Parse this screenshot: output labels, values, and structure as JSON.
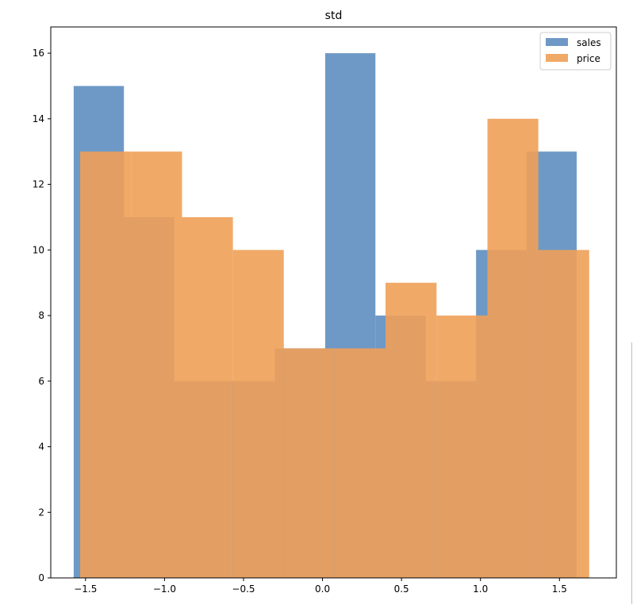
{
  "chart_data": {
    "type": "histogram",
    "title": "std",
    "xlabel": "",
    "ylabel": "",
    "xlim": [
      -1.72,
      1.86
    ],
    "ylim": [
      0,
      16.8
    ],
    "xticks": [
      -1.5,
      -1.0,
      -0.5,
      0.0,
      0.5,
      1.0,
      1.5
    ],
    "xtick_labels": [
      "−1.5",
      "−1.0",
      "−0.5",
      "0.0",
      "0.5",
      "1.0",
      "1.5"
    ],
    "yticks": [
      0,
      2,
      4,
      6,
      8,
      10,
      12,
      14,
      16
    ],
    "ytick_labels": [
      "0",
      "2",
      "4",
      "6",
      "8",
      "10",
      "12",
      "14",
      "16"
    ],
    "grid": false,
    "legend_position": "top-right",
    "series": [
      {
        "name": "sales",
        "color": "#4a80b8",
        "opacity": 0.8,
        "bin_edges": [
          -1.575,
          -1.257,
          -0.938,
          -0.62,
          -0.302,
          0.017,
          0.335,
          0.654,
          0.972,
          1.29,
          1.609
        ],
        "counts": [
          15,
          11,
          6,
          6,
          7,
          16,
          8,
          6,
          10,
          13
        ]
      },
      {
        "name": "price",
        "color": "#f0a058",
        "opacity": 0.9,
        "bin_edges": [
          -1.534,
          -1.212,
          -0.889,
          -0.567,
          -0.245,
          0.077,
          0.399,
          0.722,
          1.044,
          1.366,
          1.688
        ],
        "counts": [
          13,
          13,
          11,
          10,
          7,
          7,
          9,
          8,
          14,
          10
        ]
      }
    ]
  }
}
